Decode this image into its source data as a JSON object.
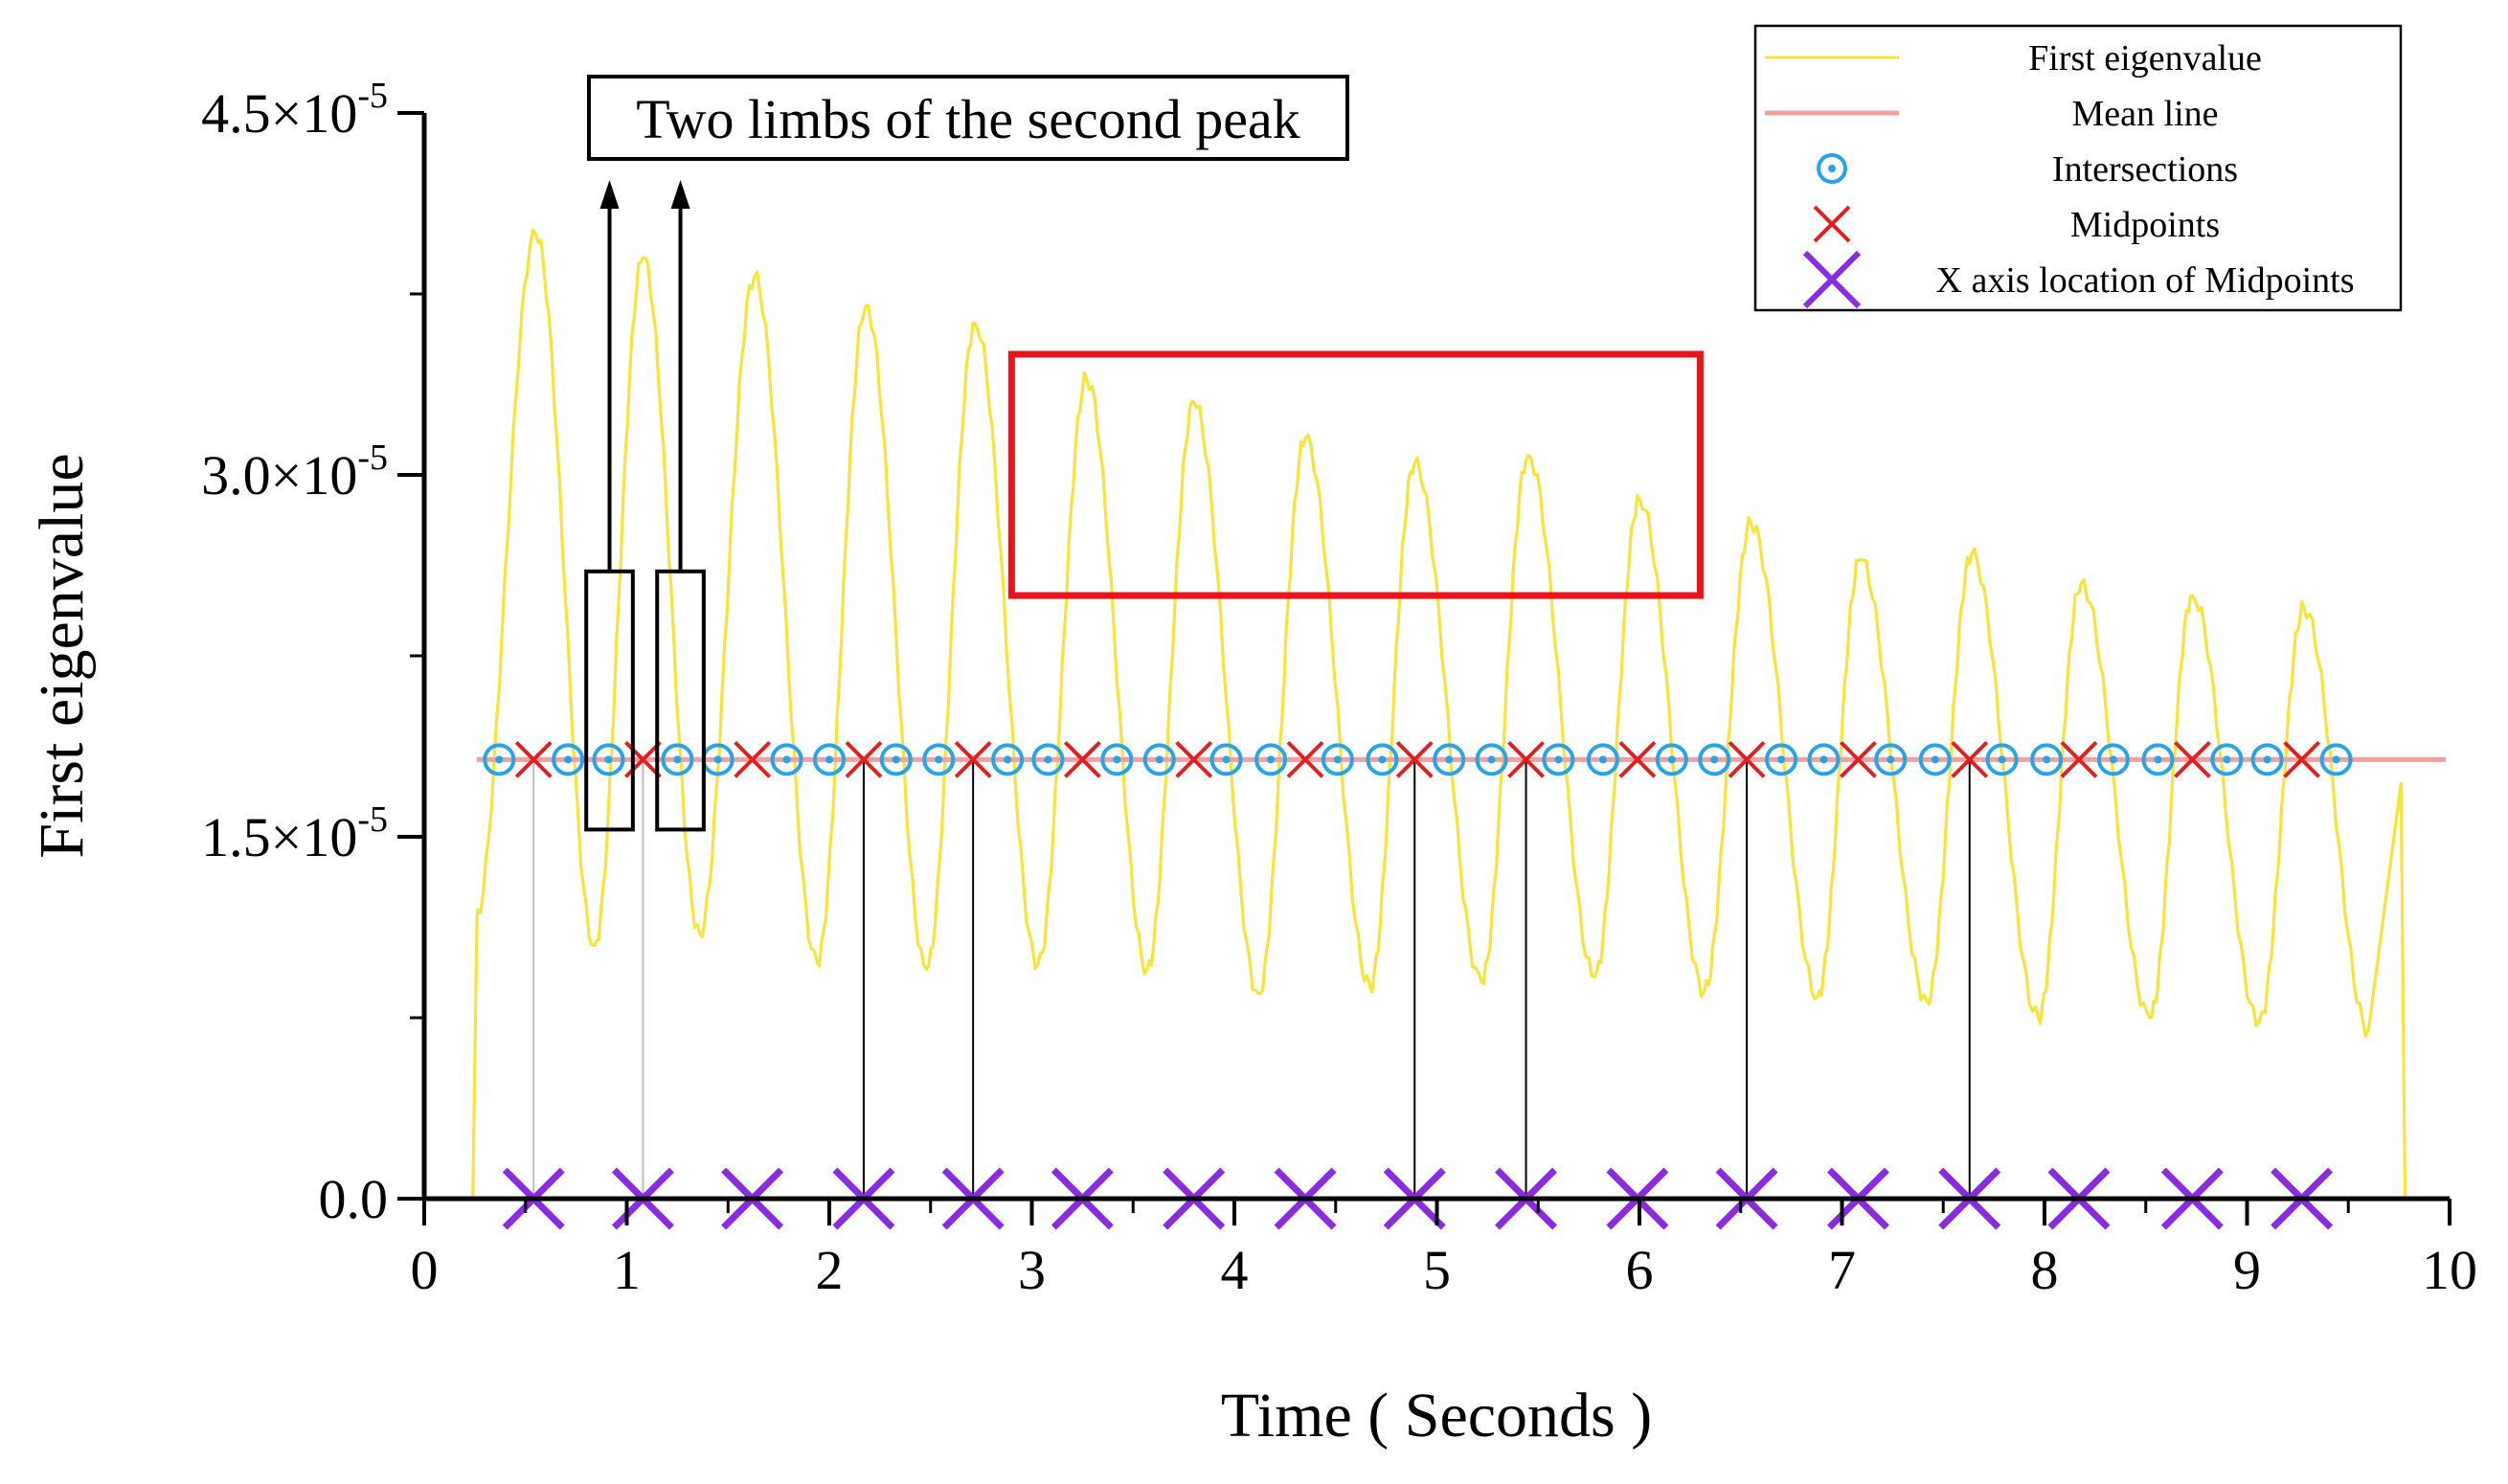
{
  "chart_data": {
    "type": "line",
    "title": "",
    "xlabel": "Time ( Seconds )",
    "ylabel": "First eigenvalue",
    "xlim": [
      0,
      10
    ],
    "ylim": [
      0,
      4.5e-05
    ],
    "xticks": [
      0,
      1,
      2,
      3,
      4,
      5,
      6,
      7,
      8,
      9,
      10
    ],
    "xtick_labels": [
      "0",
      "1",
      "2",
      "3",
      "4",
      "5",
      "6",
      "7",
      "8",
      "9",
      "10"
    ],
    "yticks": [
      0,
      1.5e-05,
      3e-05,
      4.5e-05
    ],
    "ytick_labels": [
      {
        "mantissa": "0.0",
        "exp": ""
      },
      {
        "mantissa": "1.5×10",
        "exp": "-5"
      },
      {
        "mantissa": "3.0×10",
        "exp": "-5"
      },
      {
        "mantissa": "4.5×10",
        "exp": "-5"
      }
    ],
    "grid": false,
    "legend_position": "top-right",
    "mean_value": 1.82e-05,
    "peaks": [
      {
        "t": 0.55,
        "v": 4e-05
      },
      {
        "t": 1.08,
        "v": 3.9e-05
      },
      {
        "t": 1.63,
        "v": 3.82e-05
      },
      {
        "t": 2.18,
        "v": 3.7e-05
      },
      {
        "t": 2.72,
        "v": 3.63e-05
      },
      {
        "t": 3.27,
        "v": 3.4e-05
      },
      {
        "t": 3.8,
        "v": 3.3e-05
      },
      {
        "t": 4.35,
        "v": 3.15e-05
      },
      {
        "t": 4.89,
        "v": 3.05e-05
      },
      {
        "t": 5.45,
        "v": 3.08e-05
      },
      {
        "t": 6.0,
        "v": 2.9e-05
      },
      {
        "t": 6.55,
        "v": 2.8e-05
      },
      {
        "t": 7.09,
        "v": 2.65e-05
      },
      {
        "t": 7.64,
        "v": 2.67e-05
      },
      {
        "t": 8.18,
        "v": 2.55e-05
      },
      {
        "t": 8.73,
        "v": 2.5e-05
      },
      {
        "t": 9.28,
        "v": 2.45e-05
      }
    ],
    "troughs": [
      {
        "t": 0.25,
        "v": 1.15e-05
      },
      {
        "t": 0.84,
        "v": 1.05e-05
      },
      {
        "t": 1.36,
        "v": 1.1e-05
      },
      {
        "t": 1.94,
        "v": 9.8e-06
      },
      {
        "t": 2.48,
        "v": 9.5e-06
      },
      {
        "t": 3.03,
        "v": 9.7e-06
      },
      {
        "t": 3.57,
        "v": 9.5e-06
      },
      {
        "t": 4.12,
        "v": 8.5e-06
      },
      {
        "t": 4.67,
        "v": 8.8e-06
      },
      {
        "t": 5.22,
        "v": 9e-06
      },
      {
        "t": 5.78,
        "v": 9.2e-06
      },
      {
        "t": 6.32,
        "v": 8.6e-06
      },
      {
        "t": 6.88,
        "v": 8.4e-06
      },
      {
        "t": 7.42,
        "v": 8.2e-06
      },
      {
        "t": 7.97,
        "v": 7.5e-06
      },
      {
        "t": 8.52,
        "v": 7.5e-06
      },
      {
        "t": 9.06,
        "v": 7.3e-06
      },
      {
        "t": 9.6,
        "v": 7e-06
      }
    ],
    "tail": {
      "t": 9.76,
      "v": 1.72e-05
    },
    "intersections": [
      0.37,
      0.71,
      0.91,
      1.25,
      1.45,
      1.79,
      2.0,
      2.33,
      2.54,
      2.88,
      3.08,
      3.42,
      3.63,
      3.96,
      4.18,
      4.51,
      4.73,
      5.06,
      5.27,
      5.6,
      5.82,
      6.16,
      6.37,
      6.7,
      6.91,
      7.24,
      7.46,
      7.79,
      8.01,
      8.34,
      8.56,
      8.9,
      9.1,
      9.44
    ],
    "midpoints": [
      0.54,
      1.08,
      1.62,
      2.17,
      2.71,
      3.25,
      3.8,
      4.35,
      4.89,
      5.44,
      5.99,
      6.53,
      7.08,
      7.63,
      8.17,
      8.73,
      9.27
    ],
    "drop_lines": [
      {
        "t": 0.54,
        "style": "gray"
      },
      {
        "t": 1.08,
        "style": "gray"
      },
      {
        "t": 2.17,
        "style": "black"
      },
      {
        "t": 2.71,
        "style": "black"
      },
      {
        "t": 4.89,
        "style": "black"
      },
      {
        "t": 5.44,
        "style": "black"
      },
      {
        "t": 6.53,
        "style": "black"
      },
      {
        "t": 7.63,
        "style": "black"
      }
    ],
    "series": [
      {
        "name": "First eigenvalue",
        "color": "#f7e43a",
        "marker": "line"
      },
      {
        "name": "Mean line",
        "color": "#f0a0a0",
        "marker": "line"
      },
      {
        "name": "Intersections",
        "color": "#29a3e8",
        "marker": "circle-dot"
      },
      {
        "name": "Midpoints",
        "color": "#e02020",
        "marker": "x"
      },
      {
        "name": "X axis location of Midpoints",
        "color": "#8a2be2",
        "marker": "x"
      }
    ],
    "annotations": {
      "two_limbs_text": "Two limbs of the second peak",
      "limb_boxes": [
        {
          "t0": 0.8,
          "t1": 1.03,
          "v0": 1.53e-05,
          "v1": 2.6e-05
        },
        {
          "t0": 1.15,
          "t1": 1.38,
          "v0": 1.53e-05,
          "v1": 2.6e-05
        }
      ],
      "red_box": {
        "t0": 2.9,
        "t1": 6.3,
        "v0": 2.5e-05,
        "v1": 3.5e-05,
        "color": "#e8141b"
      }
    }
  }
}
